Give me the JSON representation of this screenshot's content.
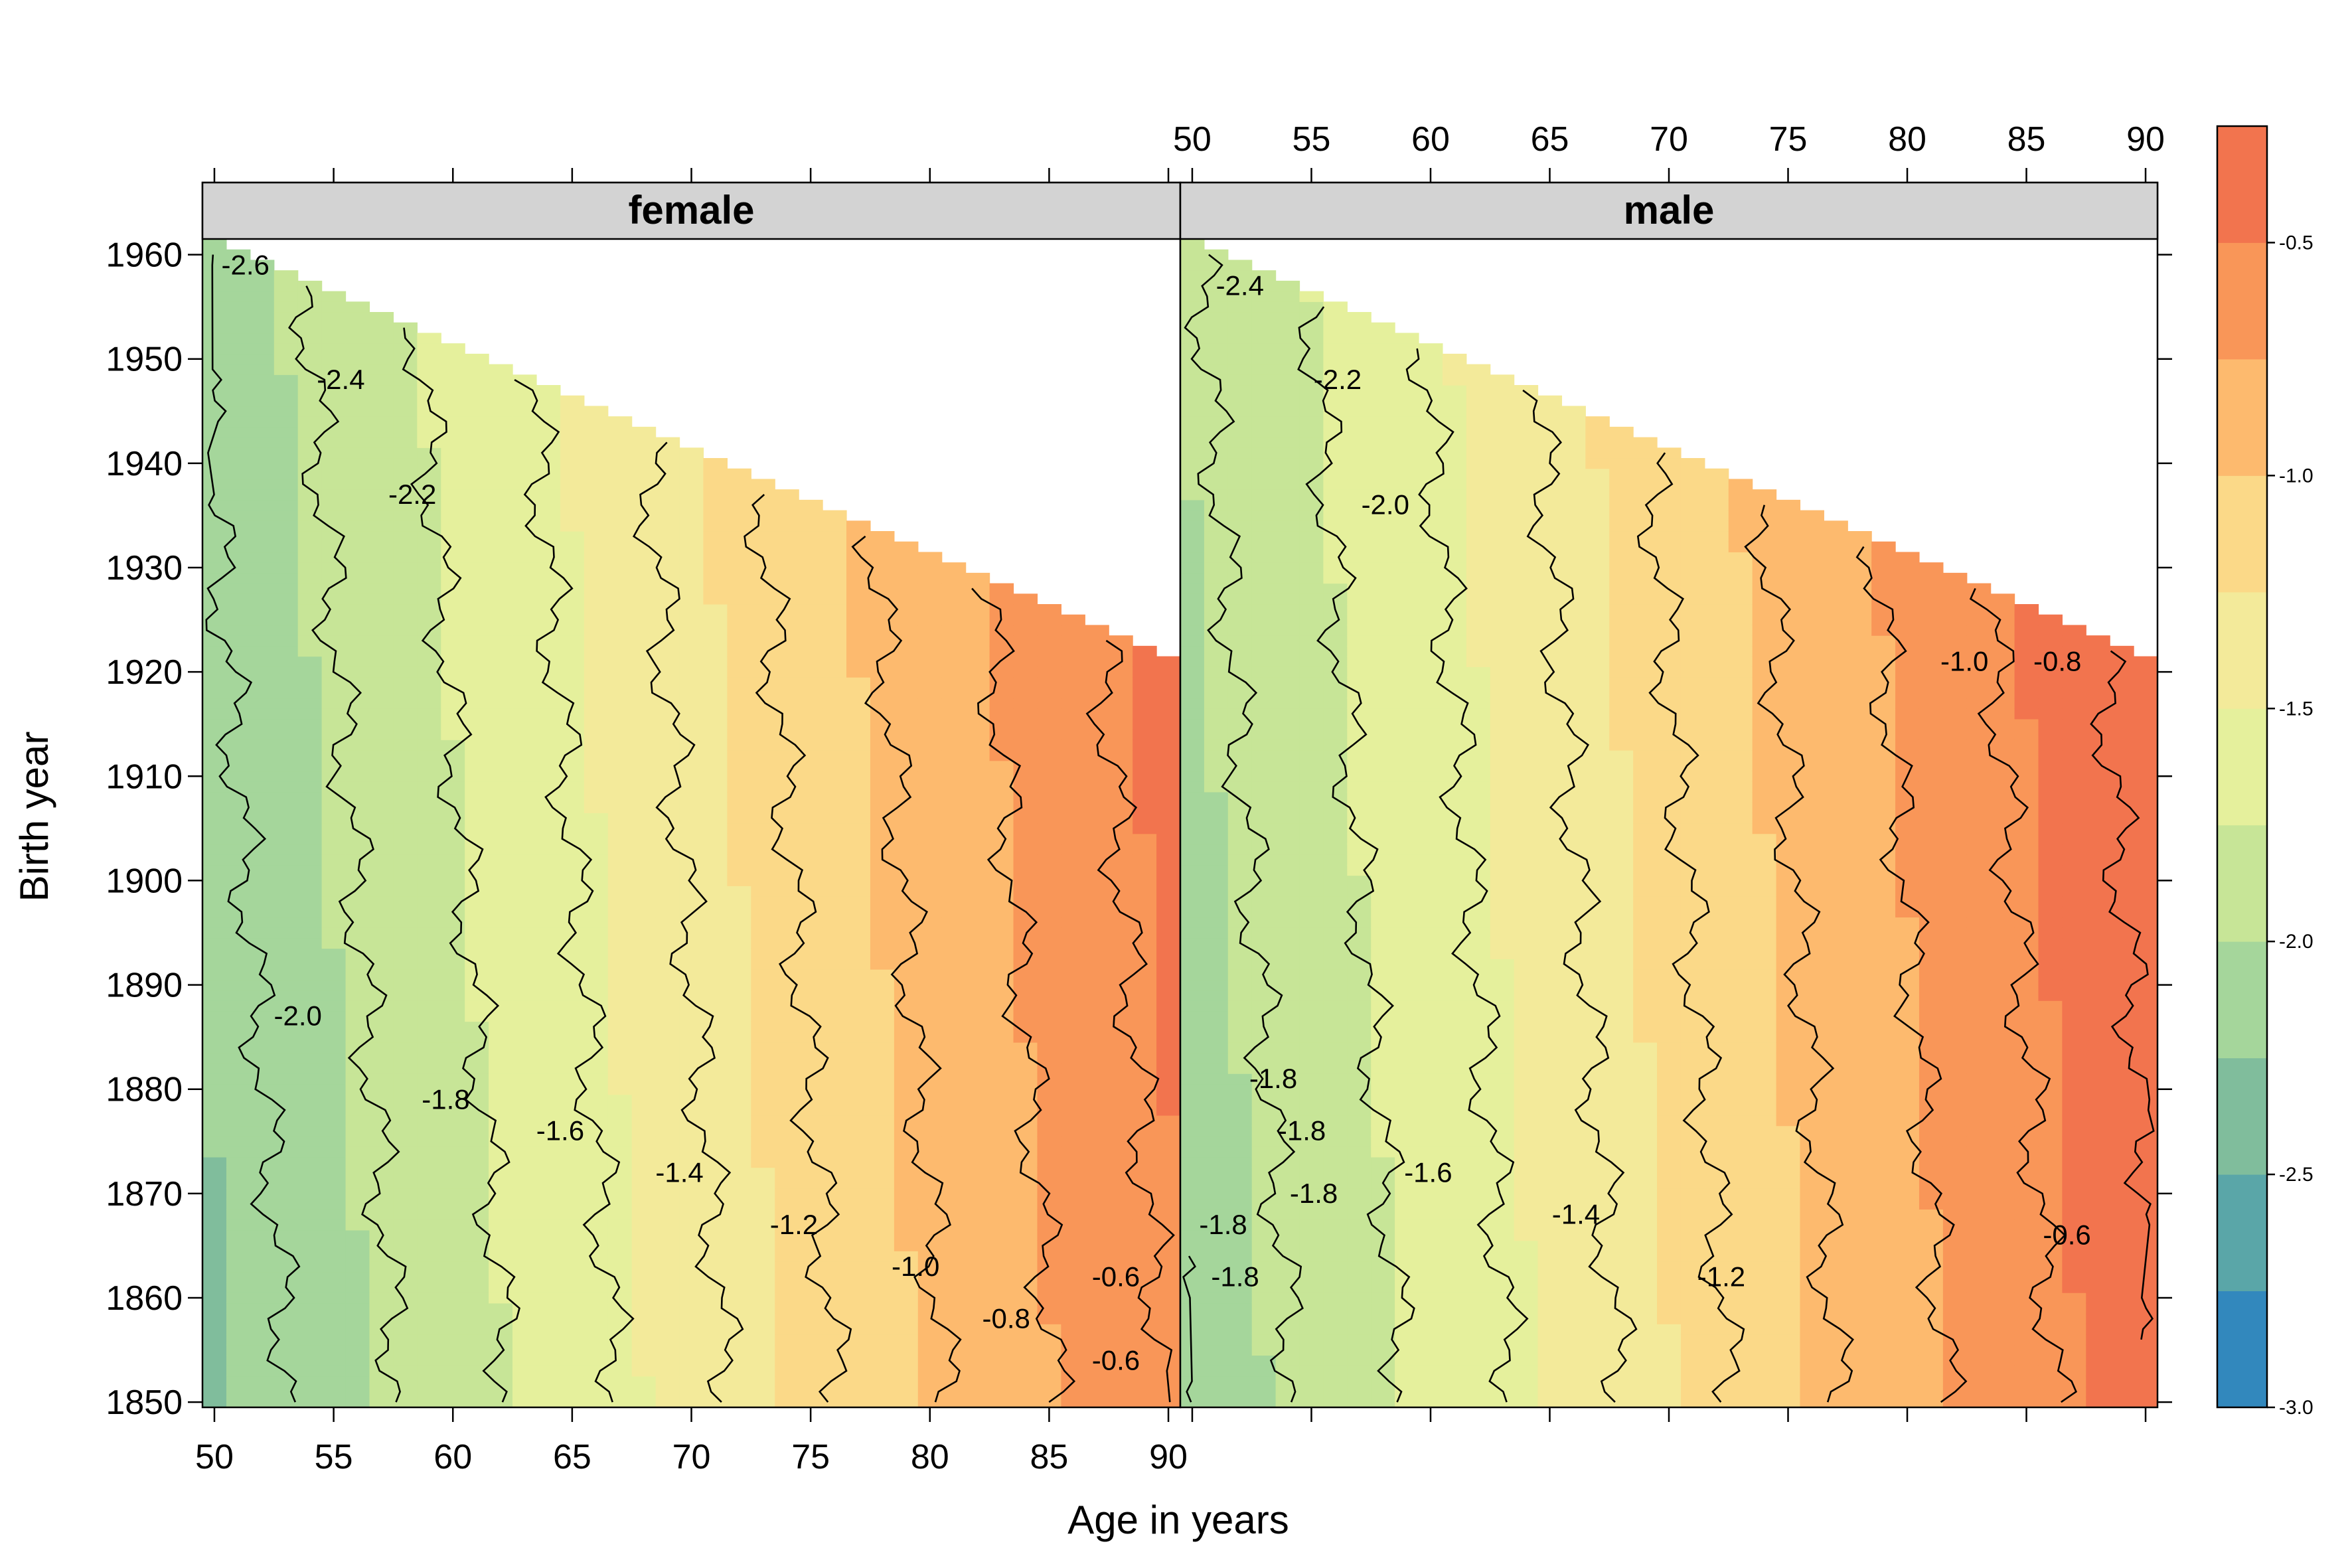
{
  "chart_data": {
    "type": "heatmap",
    "title": "",
    "xlabel": "Age in years",
    "ylabel": "Birth year",
    "xlim": [
      49.5,
      90.5
    ],
    "ylim": [
      1849.5,
      1961.5
    ],
    "x_ticks": [
      50,
      55,
      60,
      65,
      70,
      75,
      80,
      85,
      90
    ],
    "y_ticks": [
      1850,
      1860,
      1870,
      1880,
      1890,
      1900,
      1910,
      1920,
      1930,
      1940,
      1950,
      1960
    ],
    "value_range": [
      -3.0,
      -0.2
    ],
    "colorkey": {
      "ticks": [
        -3.0,
        -2.5,
        -2.0,
        -1.5,
        -1.0,
        -0.5
      ],
      "breaks": [
        -3.0,
        -2.75,
        -2.5,
        -2.25,
        -2.0,
        -1.75,
        -1.5,
        -1.25,
        -1.0,
        -0.75,
        -0.5,
        -0.25
      ],
      "colors": [
        "#3288bd",
        "#5aa6a8",
        "#80bd9c",
        "#a5d69b",
        "#c7e597",
        "#e5f09c",
        "#f3ea9a",
        "#fbd988",
        "#fdba6e",
        "#f99658",
        "#f2744e",
        "#e35454",
        "#d53e4f"
      ]
    },
    "panels": [
      {
        "name": "female",
        "base_value_at_50": -2.45,
        "slope_per_year": 0.0436,
        "contour_labels": [
          {
            "text": "-2.6",
            "age": 51.3,
            "year": 1959
          },
          {
            "text": "-2.4",
            "age": 55.3,
            "year": 1948
          },
          {
            "text": "-2.2",
            "age": 58.3,
            "year": 1937
          },
          {
            "text": "-2.0",
            "age": 53.5,
            "year": 1887
          },
          {
            "text": "-1.8",
            "age": 59.7,
            "year": 1879
          },
          {
            "text": "-1.6",
            "age": 64.5,
            "year": 1876
          },
          {
            "text": "-1.4",
            "age": 69.5,
            "year": 1872
          },
          {
            "text": "-1.2",
            "age": 74.3,
            "year": 1867
          },
          {
            "text": "-1.0",
            "age": 79.4,
            "year": 1863
          },
          {
            "text": "-0.8",
            "age": 83.2,
            "year": 1858
          },
          {
            "text": "-0.6",
            "age": 87.8,
            "year": 1862
          },
          {
            "text": "-0.6",
            "age": 87.8,
            "year": 1854
          }
        ]
      },
      {
        "name": "male",
        "base_value_at_50": -2.3,
        "slope_per_year": 0.0438,
        "contour_labels": [
          {
            "text": "-2.4",
            "age": 52.0,
            "year": 1957
          },
          {
            "text": "-2.2",
            "age": 56.1,
            "year": 1948
          },
          {
            "text": "-2.0",
            "age": 58.1,
            "year": 1936
          },
          {
            "text": "-1.8",
            "age": 53.4,
            "year": 1881
          },
          {
            "text": "-1.8",
            "age": 54.6,
            "year": 1876
          },
          {
            "text": "-1.8",
            "age": 55.1,
            "year": 1870
          },
          {
            "text": "-1.8",
            "age": 51.3,
            "year": 1867
          },
          {
            "text": "-1.8",
            "age": 51.8,
            "year": 1862
          },
          {
            "text": "-1.6",
            "age": 59.9,
            "year": 1872
          },
          {
            "text": "-1.4",
            "age": 66.1,
            "year": 1868
          },
          {
            "text": "-1.2",
            "age": 72.2,
            "year": 1862
          },
          {
            "text": "-1.0",
            "age": 82.4,
            "year": 1921
          },
          {
            "text": "-0.8",
            "age": 86.3,
            "year": 1921
          },
          {
            "text": "-0.6",
            "age": 86.7,
            "year": 1866
          }
        ]
      }
    ]
  }
}
